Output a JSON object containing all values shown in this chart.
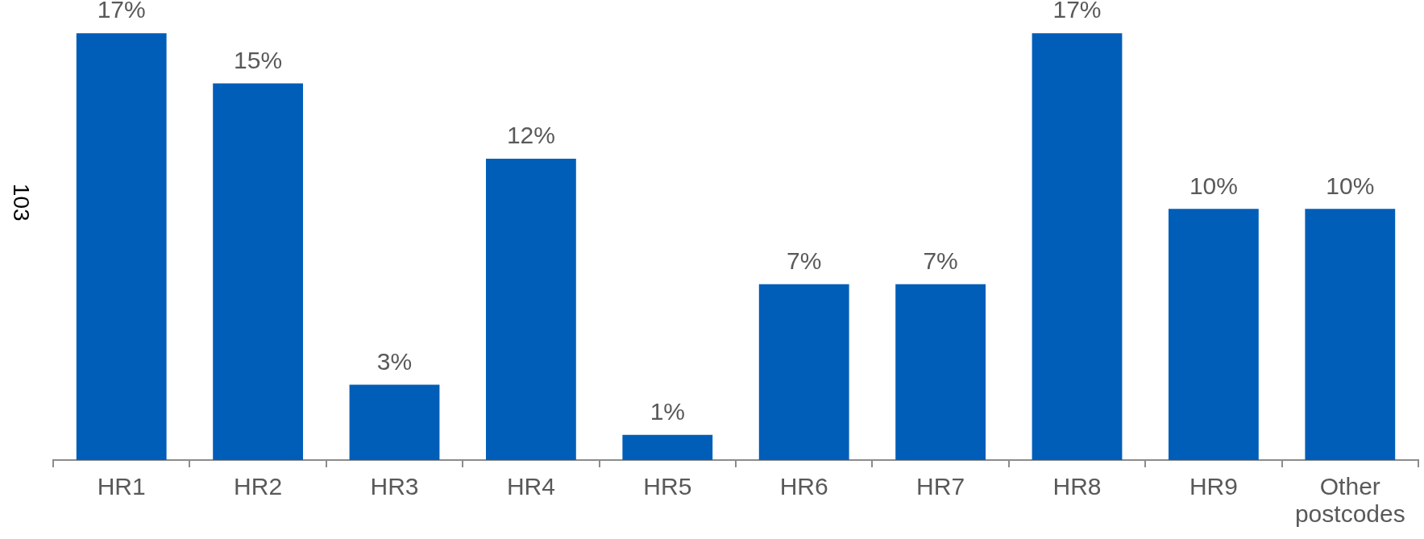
{
  "chart_data": {
    "type": "bar",
    "ylabel": "103",
    "categories": [
      "HR1",
      "HR2",
      "HR3",
      "HR4",
      "HR5",
      "HR6",
      "HR7",
      "HR8",
      "HR9",
      "Other postcodes"
    ],
    "values": [
      17,
      15,
      3,
      12,
      1,
      7,
      7,
      17,
      10,
      10
    ],
    "value_labels": [
      "17%",
      "15%",
      "3%",
      "12%",
      "1%",
      "7%",
      "7%",
      "17%",
      "10%",
      "10%"
    ],
    "color": "#005eb8",
    "tick_labels": "x"
  }
}
